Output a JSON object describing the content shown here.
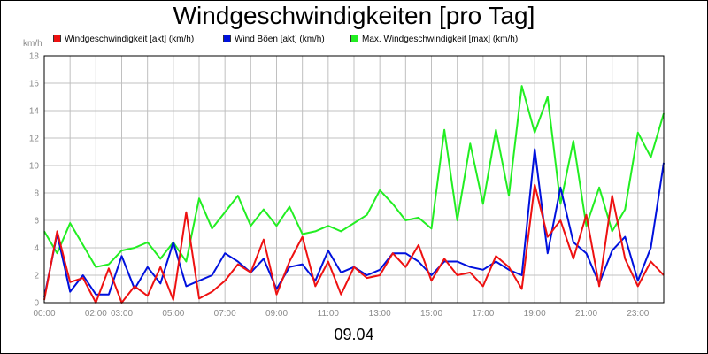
{
  "chart_data": {
    "type": "line",
    "title": "Windgeschwindigkeiten [pro Tag]",
    "ylabel": "km/h",
    "xlabel": "",
    "date_label": "09.04",
    "ylim": [
      0,
      18
    ],
    "yticks": [
      0,
      2,
      4,
      6,
      8,
      10,
      12,
      14,
      16,
      18
    ],
    "xlim_hours": [
      0,
      24
    ],
    "xticks": [
      {
        "hour": 0,
        "label": "00:00"
      },
      {
        "hour": 2,
        "label": "02:00"
      },
      {
        "hour": 3,
        "label": "03:00"
      },
      {
        "hour": 5,
        "label": "05:00"
      },
      {
        "hour": 7,
        "label": "07:00"
      },
      {
        "hour": 9,
        "label": "09:00"
      },
      {
        "hour": 11,
        "label": "11:00"
      },
      {
        "hour": 13,
        "label": "13:00"
      },
      {
        "hour": 15,
        "label": "15:00"
      },
      {
        "hour": 17,
        "label": "17:00"
      },
      {
        "hour": 19,
        "label": "19:00"
      },
      {
        "hour": 21,
        "label": "21:00"
      },
      {
        "hour": 23,
        "label": "23:00"
      }
    ],
    "grid": true,
    "legend_position": "top",
    "x_hours": [
      0,
      0.5,
      1,
      1.5,
      2,
      2.5,
      3,
      3.5,
      4,
      4.5,
      5,
      5.5,
      6,
      6.5,
      7,
      7.5,
      8,
      8.5,
      9,
      9.5,
      10,
      10.5,
      11,
      11.5,
      12,
      12.5,
      13,
      13.5,
      14,
      14.5,
      15,
      15.5,
      16,
      16.5,
      17,
      17.5,
      18,
      18.5,
      19,
      19.5,
      20,
      20.5,
      21,
      21.5,
      22,
      22.5,
      23,
      23.5,
      24
    ],
    "series": [
      {
        "name": "Windgeschwindigkeit [akt] (km/h)",
        "color": "#ee1111",
        "values": [
          0.2,
          5.2,
          1.5,
          1.8,
          0,
          2.5,
          0,
          1.2,
          0.5,
          2.6,
          0.2,
          6.6,
          0.3,
          0.8,
          1.6,
          2.8,
          2.2,
          4.6,
          0.6,
          3.0,
          4.8,
          1.2,
          3.0,
          0.6,
          2.6,
          1.8,
          2.0,
          3.6,
          2.6,
          4.2,
          1.6,
          3.2,
          2.0,
          2.2,
          1.2,
          3.4,
          2.6,
          1.0,
          8.6,
          4.8,
          6.0,
          3.2,
          6.4,
          1.2,
          7.8,
          3.2,
          1.2,
          3.0,
          2.0
        ]
      },
      {
        "name": "Wind Böen [akt] (km/h)",
        "color": "#0011dd",
        "values": [
          0.4,
          5.0,
          0.8,
          2.0,
          0.6,
          0.6,
          3.4,
          1.0,
          2.6,
          1.4,
          4.4,
          1.2,
          1.6,
          2.0,
          3.6,
          3.0,
          2.2,
          3.2,
          1.0,
          2.6,
          2.8,
          1.6,
          3.8,
          2.2,
          2.6,
          2.0,
          2.4,
          3.6,
          3.6,
          3.0,
          2.0,
          3.0,
          3.0,
          2.6,
          2.4,
          3.0,
          2.4,
          2.0,
          11.2,
          3.6,
          8.4,
          4.4,
          3.6,
          1.4,
          3.8,
          4.8,
          1.6,
          4.0,
          10.2
        ]
      },
      {
        "name": "Max. Windgeschwindigkeit [max] (km/h)",
        "color": "#22ee22",
        "values": [
          5.2,
          3.6,
          5.8,
          4.2,
          2.6,
          2.8,
          3.8,
          4.0,
          4.4,
          3.2,
          4.4,
          3.0,
          7.6,
          5.4,
          6.6,
          7.8,
          5.6,
          6.8,
          5.6,
          7.0,
          5.0,
          5.2,
          5.6,
          5.2,
          5.8,
          6.4,
          8.2,
          7.2,
          6.0,
          6.2,
          5.4,
          12.6,
          6.0,
          11.6,
          7.2,
          12.6,
          7.8,
          15.8,
          12.4,
          15.0,
          7.2,
          11.8,
          5.6,
          8.4,
          5.2,
          6.8,
          12.4,
          10.6,
          13.8
        ]
      }
    ]
  }
}
